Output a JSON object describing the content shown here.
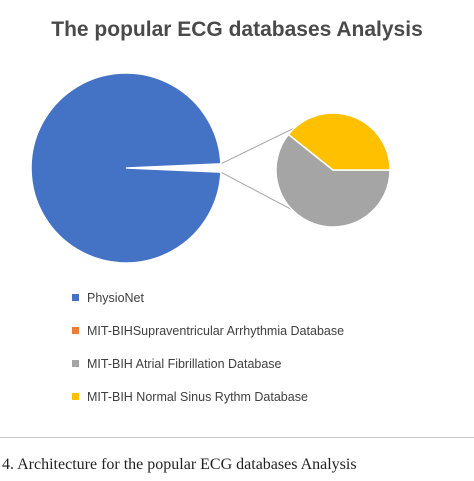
{
  "chart_data": {
    "type": "pie",
    "title": "The popular ECG databases Analysis",
    "slices": [
      {
        "label": "PhysioNet",
        "value": 98.6,
        "color": "#4472C4",
        "part": "main"
      },
      {
        "label": "MIT-BIHSupraventricular  Arrhythmia  Database",
        "value": 0,
        "color": "#ED7D31",
        "part": "detail"
      },
      {
        "label": "MIT-BIH Atrial Fibrillation Database",
        "value": 0.85,
        "color": "#A5A5A5",
        "part": "detail"
      },
      {
        "label": "MIT-BIH Normal Sinus Rythm Database",
        "value": 0.55,
        "color": "#FFC000",
        "part": "detail"
      }
    ],
    "legend_position": "bottom-left",
    "subtype": "pie-of-pie"
  },
  "caption": "4.  Architecture for the popular ECG databases Analysis"
}
